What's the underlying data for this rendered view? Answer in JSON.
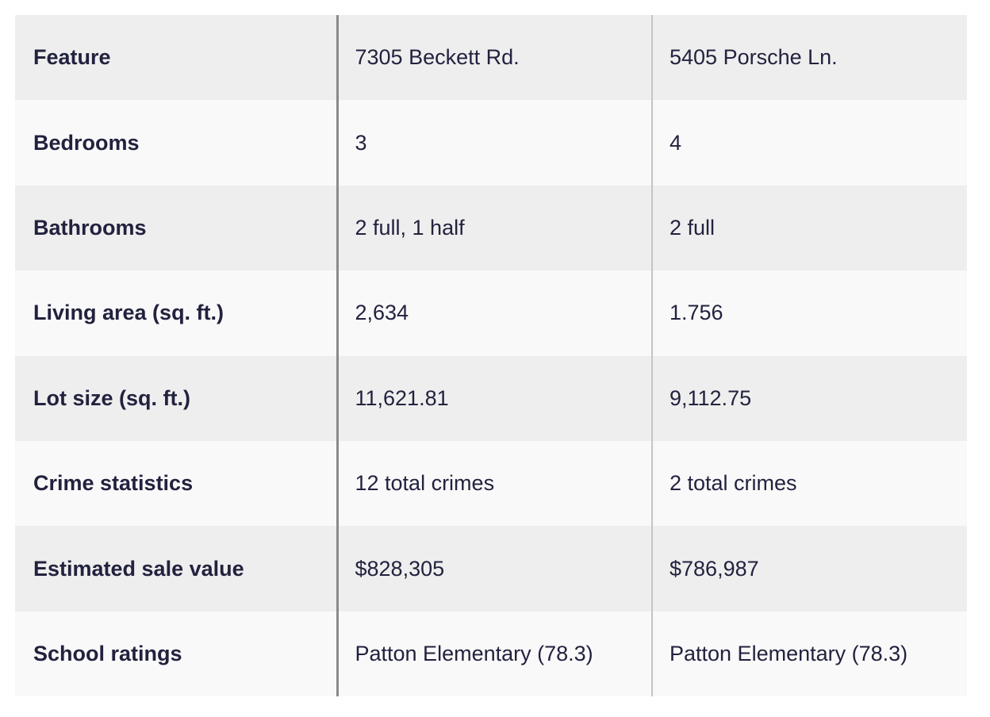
{
  "table": {
    "header": [
      "Feature",
      "7305 Beckett Rd.",
      "5405 Porsche Ln."
    ],
    "rows": [
      [
        "Bedrooms",
        "3",
        "4"
      ],
      [
        "Bathrooms",
        "2 full, 1 half",
        "2 full"
      ],
      [
        "Living area (sq. ft.)",
        "2,634",
        "1.756"
      ],
      [
        "Lot size (sq. ft.)",
        "11,621.81",
        "9,112.75"
      ],
      [
        "Crime statistics",
        "12 total crimes",
        "2 total crimes"
      ],
      [
        "Estimated sale value",
        "$828,305",
        "$786,987"
      ],
      [
        "School ratings",
        "Patton Elementary (78.3)",
        "Patton Elementary (78.3)"
      ]
    ]
  }
}
